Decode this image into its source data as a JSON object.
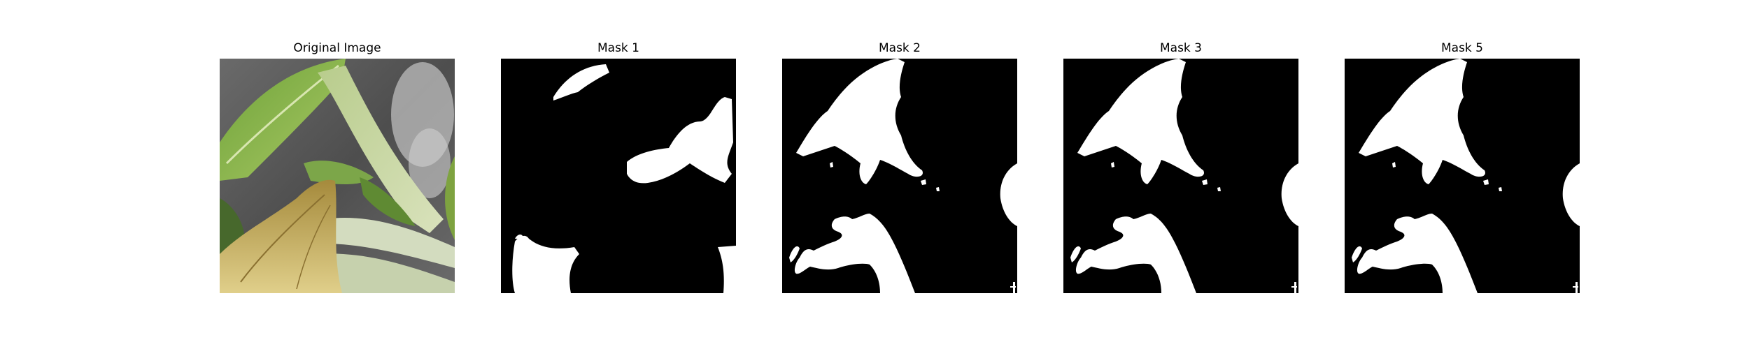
{
  "figure": {
    "panels": [
      {
        "title": "Original Image",
        "kind": "photo"
      },
      {
        "title": "Mask 1",
        "kind": "mask"
      },
      {
        "title": "Mask 2",
        "kind": "mask"
      },
      {
        "title": "Mask 3",
        "kind": "mask"
      },
      {
        "title": "Mask 5",
        "kind": "mask"
      }
    ],
    "colors": {
      "mask_background": "#000000",
      "mask_foreground": "#ffffff",
      "leaf_green": "#8fb04a",
      "stem_pale": "#c9d6a6",
      "dry_leaf": "#b79a4a",
      "background_gray": "#5b5b5b"
    }
  }
}
